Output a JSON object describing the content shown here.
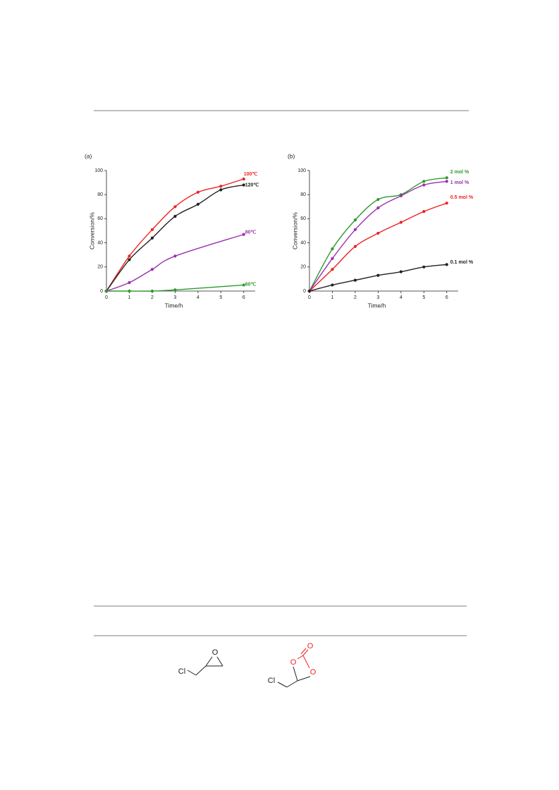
{
  "chart_data": [
    {
      "type": "line",
      "panel": "(a)",
      "xlabel": "Time/h",
      "ylabel": "Conversion/%",
      "xlim": [
        0,
        6.5
      ],
      "ylim": [
        0,
        100
      ],
      "xticks": [
        0,
        1,
        2,
        3,
        4,
        5,
        6
      ],
      "yticks": [
        0,
        20,
        40,
        60,
        80,
        100
      ],
      "series": [
        {
          "name": "100℃",
          "color": "#ee2222",
          "x": [
            0,
            1,
            2,
            3,
            4,
            5,
            6
          ],
          "values": [
            0,
            29,
            51,
            70,
            82,
            87,
            93
          ]
        },
        {
          "name": "120℃",
          "color": "#222222",
          "x": [
            0,
            1,
            2,
            3,
            4,
            5,
            6
          ],
          "values": [
            0,
            26,
            44,
            62,
            72,
            84,
            88
          ]
        },
        {
          "name": "80℃",
          "color": "#9b2fae",
          "x": [
            0,
            1,
            2,
            3,
            6
          ],
          "values": [
            0,
            7,
            18,
            29,
            47
          ]
        },
        {
          "name": "60℃",
          "color": "#2e9a2e",
          "x": [
            0,
            1,
            2,
            3,
            6
          ],
          "values": [
            0,
            0,
            0,
            1,
            5
          ]
        }
      ]
    },
    {
      "type": "line",
      "panel": "(b)",
      "xlabel": "Time/h",
      "ylabel": "Conversion/%",
      "xlim": [
        0,
        6.5
      ],
      "ylim": [
        0,
        100
      ],
      "xticks": [
        0,
        1,
        2,
        3,
        4,
        5,
        6
      ],
      "yticks": [
        0,
        20,
        40,
        60,
        80,
        100
      ],
      "series": [
        {
          "name": "2 mol %",
          "color": "#2e9a2e",
          "x": [
            0,
            1,
            2,
            3,
            4,
            5,
            6
          ],
          "values": [
            0,
            35,
            59,
            76,
            80,
            91,
            94
          ]
        },
        {
          "name": "1 mol %",
          "color": "#9b2fae",
          "x": [
            0,
            1,
            2,
            3,
            4,
            5,
            6
          ],
          "values": [
            0,
            27,
            51,
            69,
            79,
            88,
            91
          ]
        },
        {
          "name": "0.5 mol %",
          "color": "#ee2222",
          "x": [
            0,
            1,
            2,
            3,
            4,
            5,
            6
          ],
          "values": [
            0,
            18,
            37,
            48,
            57,
            66,
            73
          ]
        },
        {
          "name": "0.1 mol %",
          "color": "#222222",
          "x": [
            0,
            1,
            2,
            3,
            4,
            5,
            6
          ],
          "values": [
            0,
            5,
            9,
            13,
            16,
            20,
            22
          ]
        }
      ]
    }
  ],
  "structures": [
    {
      "atoms": [
        "Cl",
        "O"
      ]
    },
    {
      "atoms": [
        "O",
        "O",
        "O",
        "Cl"
      ]
    }
  ]
}
